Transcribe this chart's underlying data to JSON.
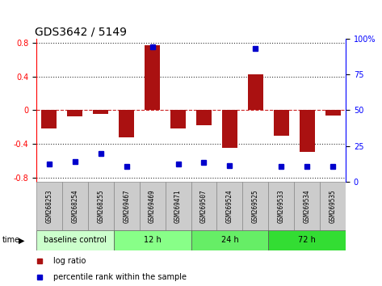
{
  "title": "GDS3642 / 5149",
  "samples": [
    "GSM268253",
    "GSM268254",
    "GSM268255",
    "GSM269467",
    "GSM269469",
    "GSM269471",
    "GSM269507",
    "GSM269524",
    "GSM269525",
    "GSM269533",
    "GSM269534",
    "GSM269535"
  ],
  "log_ratio": [
    -0.22,
    -0.07,
    -0.05,
    -0.32,
    0.77,
    -0.22,
    -0.18,
    -0.45,
    0.43,
    -0.3,
    -0.5,
    -0.06
  ],
  "percentile_rank": [
    10,
    12,
    18,
    8,
    97,
    10,
    11,
    9,
    96,
    8,
    8,
    8
  ],
  "groups": [
    {
      "label": "baseline control",
      "start": 0,
      "end": 3,
      "color": "#ccffcc"
    },
    {
      "label": "12 h",
      "start": 3,
      "end": 6,
      "color": "#88ff88"
    },
    {
      "label": "24 h",
      "start": 6,
      "end": 9,
      "color": "#66ee66"
    },
    {
      "label": "72 h",
      "start": 9,
      "end": 12,
      "color": "#33dd33"
    }
  ],
  "ylim": [
    -0.85,
    0.85
  ],
  "yticks_left": [
    -0.8,
    -0.4,
    0.0,
    0.4,
    0.8
  ],
  "yticks_right": [
    0,
    25,
    50,
    75,
    100
  ],
  "bar_color": "#aa1111",
  "dot_color": "#0000cc",
  "grid_color_black": "#333333",
  "zero_line_color": "#cc2222",
  "bg_color": "#ffffff",
  "sample_bg": "#cccccc",
  "title_fontsize": 10,
  "tick_fontsize": 7,
  "label_fontsize": 7.5
}
